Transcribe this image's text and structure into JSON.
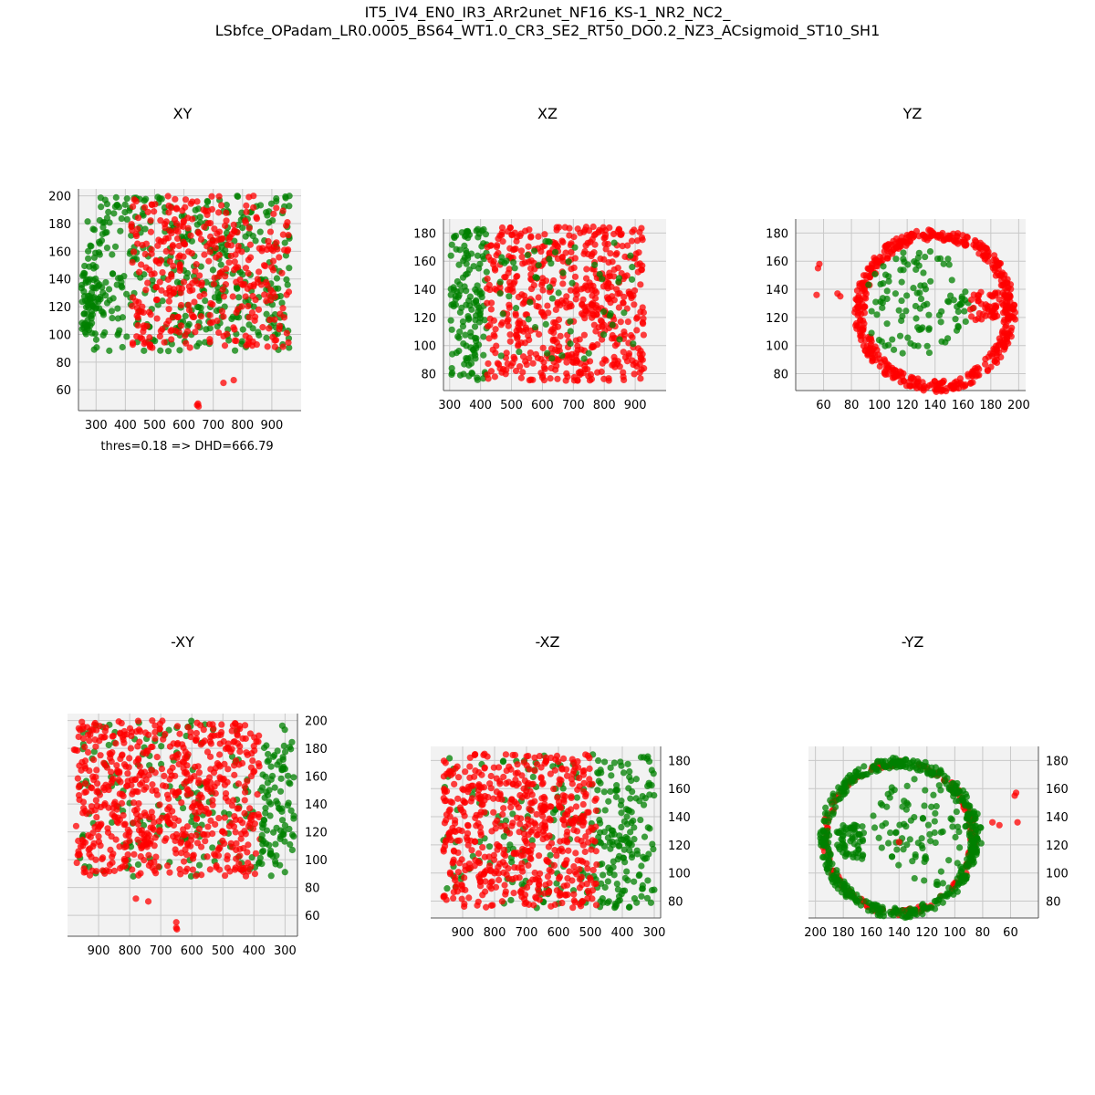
{
  "figure": {
    "title_line1": "IT5_IV4_EN0_IR3_ARr2unet_NF16_KS-1_NR2_NC2_",
    "title_line2": "LSbfce_OPadam_LR0.0005_BS64_WT1.0_CR3_SE2_RT50_DO0.2_NZ3_ACsigmoid_ST10_SH1",
    "annotation": "thres=0.18 => DHD=666.79"
  },
  "colors": {
    "series_a": "#ff0000",
    "series_b": "#008000",
    "pane": "#f2f2f2",
    "grid": "#c8c8c8"
  },
  "chart_data": [
    {
      "type": "scatter",
      "title": "XY",
      "view": "XY",
      "xlabel": "",
      "ylabel": "",
      "x_ticks": [
        "300",
        "400",
        "500",
        "600",
        "700",
        "800",
        "900"
      ],
      "y_ticks": [
        "60",
        "80",
        "100",
        "120",
        "140",
        "160",
        "180",
        "200"
      ],
      "xlim": [
        240,
        1000
      ],
      "ylim": [
        45,
        205
      ],
      "grid": true,
      "series": [
        {
          "color": "#008000",
          "shape": "box",
          "x": [
            270,
            960
          ],
          "y": [
            88,
            200
          ],
          "density": 420
        },
        {
          "color": "#008000",
          "shape": "blob",
          "x": [
            250,
            300
          ],
          "y": [
            100,
            150
          ],
          "density": 60
        },
        {
          "color": "#ff0000",
          "shape": "box",
          "x": [
            420,
            960
          ],
          "y": [
            90,
            200
          ],
          "density": 380
        },
        {
          "color": "#ff0000",
          "shape": "points",
          "points": [
            [
              735,
              65
            ],
            [
              770,
              67
            ],
            [
              645,
              49
            ],
            [
              650,
              48
            ],
            [
              648,
              50
            ]
          ]
        }
      ]
    },
    {
      "type": "scatter",
      "title": "XZ",
      "view": "XZ",
      "xlabel": "",
      "ylabel": "",
      "x_ticks": [
        "300",
        "400",
        "500",
        "600",
        "700",
        "800",
        "900"
      ],
      "y_ticks": [
        "80",
        "100",
        "120",
        "140",
        "160",
        "180"
      ],
      "xlim": [
        280,
        1000
      ],
      "ylim": [
        68,
        190
      ],
      "grid": true,
      "series": [
        {
          "color": "#008000",
          "shape": "box",
          "x": [
            300,
            420
          ],
          "y": [
            75,
            185
          ],
          "density": 150
        },
        {
          "color": "#ff0000",
          "shape": "box",
          "x": [
            420,
            930
          ],
          "y": [
            75,
            185
          ],
          "density": 600
        },
        {
          "color": "#008000",
          "shape": "box",
          "x": [
            450,
            900
          ],
          "y": [
            90,
            175
          ],
          "density": 60
        }
      ]
    },
    {
      "type": "scatter",
      "title": "YZ",
      "view": "YZ",
      "xlabel": "",
      "ylabel": "",
      "x_ticks": [
        "60",
        "80",
        "100",
        "120",
        "140",
        "160",
        "180",
        "200"
      ],
      "y_ticks": [
        "80",
        "100",
        "120",
        "140",
        "160",
        "180"
      ],
      "xlim": [
        40,
        205
      ],
      "ylim": [
        68,
        190
      ],
      "grid": true,
      "series": [
        {
          "color": "#ff0000",
          "shape": "ring",
          "center": [
            140,
            125
          ],
          "radius": [
            50,
            58
          ],
          "density": 500
        },
        {
          "color": "#008000",
          "shape": "disk",
          "center": [
            128,
            130
          ],
          "radius": [
            40,
            42
          ],
          "density": 110
        },
        {
          "color": "#ff0000",
          "shape": "blob",
          "x": [
            165,
            195
          ],
          "y": [
            118,
            138
          ],
          "density": 70
        },
        {
          "color": "#ff0000",
          "shape": "points",
          "points": [
            [
              56,
              155
            ],
            [
              57,
              158
            ],
            [
              55,
              136
            ],
            [
              72,
              135
            ],
            [
              70,
              137
            ]
          ]
        }
      ]
    },
    {
      "type": "scatter",
      "title": "-XY",
      "view": "-XY",
      "xlabel": "",
      "ylabel": "",
      "x_ticks": [
        "900",
        "800",
        "700",
        "600",
        "500",
        "400",
        "300"
      ],
      "y_ticks": [
        "60",
        "80",
        "100",
        "120",
        "140",
        "160",
        "180",
        "200"
      ],
      "xlim": [
        1000,
        260
      ],
      "ylim": [
        45,
        205
      ],
      "grid": true,
      "series": [
        {
          "color": "#008000",
          "shape": "box",
          "x": [
            270,
            960
          ],
          "y": [
            88,
            200
          ],
          "density": 160
        },
        {
          "color": "#ff0000",
          "shape": "box",
          "x": [
            380,
            980
          ],
          "y": [
            88,
            200
          ],
          "density": 650
        },
        {
          "color": "#008000",
          "shape": "blob",
          "x": [
            270,
            380
          ],
          "y": [
            95,
            185
          ],
          "density": 90
        },
        {
          "color": "#ff0000",
          "shape": "points",
          "points": [
            [
              780,
              72
            ],
            [
              740,
              70
            ],
            [
              650,
              55
            ],
            [
              650,
              51
            ],
            [
              648,
              50
            ]
          ]
        }
      ]
    },
    {
      "type": "scatter",
      "title": "-XZ",
      "view": "-XZ",
      "xlabel": "",
      "ylabel": "",
      "x_ticks": [
        "900",
        "800",
        "700",
        "600",
        "500",
        "400",
        "300"
      ],
      "y_ticks": [
        "80",
        "100",
        "120",
        "140",
        "160",
        "180"
      ],
      "xlim": [
        1000,
        280
      ],
      "ylim": [
        68,
        190
      ],
      "grid": true,
      "series": [
        {
          "color": "#008000",
          "shape": "box",
          "x": [
            300,
            480
          ],
          "y": [
            75,
            185
          ],
          "density": 170
        },
        {
          "color": "#008000",
          "shape": "box",
          "x": [
            480,
            960
          ],
          "y": [
            75,
            185
          ],
          "density": 120
        },
        {
          "color": "#ff0000",
          "shape": "box",
          "x": [
            480,
            960
          ],
          "y": [
            75,
            185
          ],
          "density": 580
        }
      ]
    },
    {
      "type": "scatter",
      "title": "-YZ",
      "view": "-YZ",
      "xlabel": "",
      "ylabel": "",
      "x_ticks": [
        "200",
        "180",
        "160",
        "140",
        "120",
        "100",
        "80",
        "60"
      ],
      "y_ticks": [
        "80",
        "100",
        "120",
        "140",
        "160",
        "180"
      ],
      "xlim": [
        205,
        40
      ],
      "ylim": [
        68,
        190
      ],
      "grid": true,
      "series": [
        {
          "color": "#ff0000",
          "shape": "ring",
          "center": [
            140,
            125
          ],
          "radius": [
            51,
            55
          ],
          "density": 160
        },
        {
          "color": "#008000",
          "shape": "ring",
          "center": [
            140,
            125
          ],
          "radius": [
            50,
            57
          ],
          "density": 420
        },
        {
          "color": "#008000",
          "shape": "disk",
          "center": [
            120,
            130
          ],
          "radius": [
            40,
            40
          ],
          "density": 110
        },
        {
          "color": "#008000",
          "shape": "blob",
          "x": [
            165,
            185
          ],
          "y": [
            110,
            135
          ],
          "density": 60
        },
        {
          "color": "#ff0000",
          "shape": "points",
          "points": [
            [
              140,
              122
            ],
            [
              73,
              136
            ],
            [
              68,
              134
            ],
            [
              55,
              136
            ],
            [
              56,
              157
            ],
            [
              57,
              155
            ]
          ]
        }
      ]
    }
  ]
}
